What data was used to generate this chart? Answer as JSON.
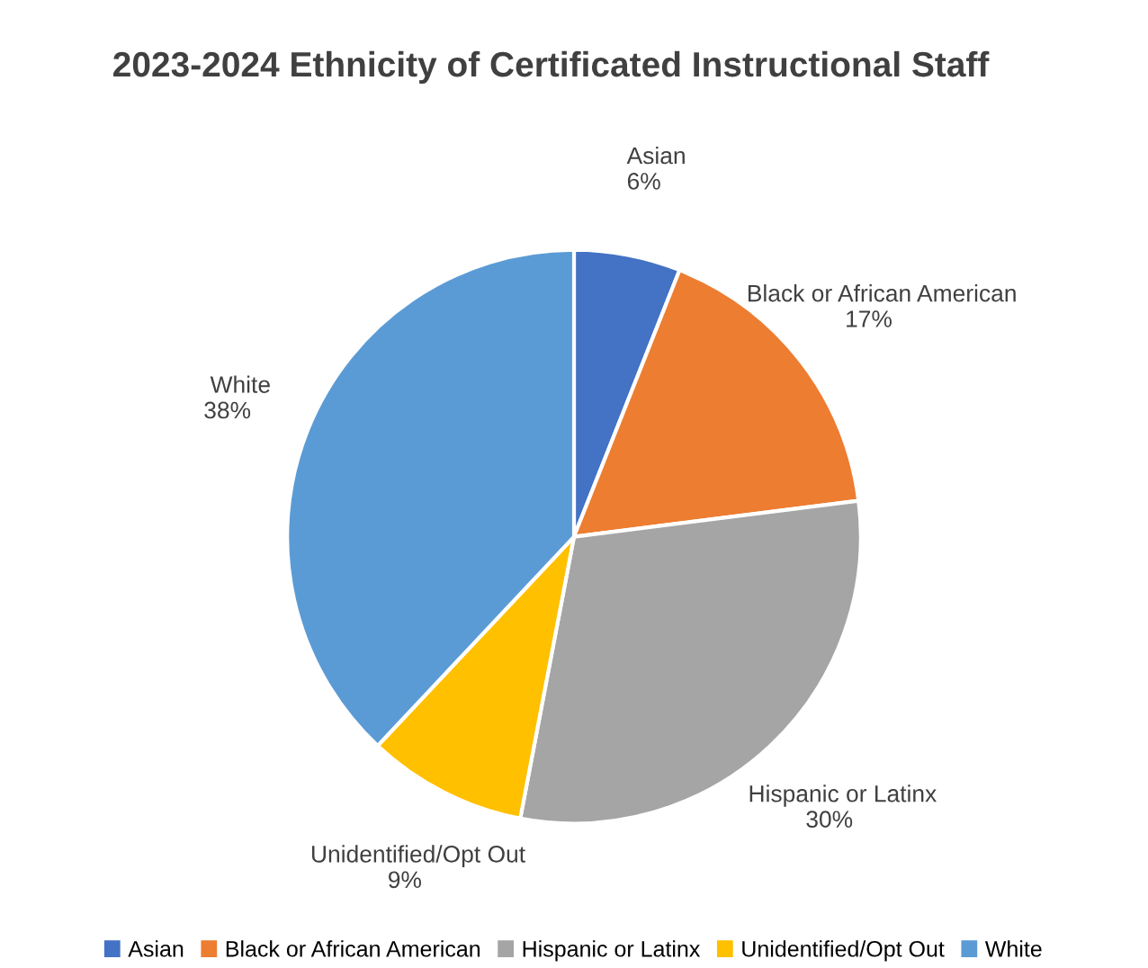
{
  "chart_data": {
    "type": "pie",
    "title": "2023-2024 Ethnicity of Certificated Instructional Staff",
    "categories": [
      "Asian",
      "Black or African American",
      "Hispanic or Latinx",
      "Unidentified/Opt Out",
      "White"
    ],
    "values": [
      6,
      17,
      30,
      9,
      38
    ],
    "value_labels": [
      "6%",
      "17%",
      "30%",
      "9%",
      "38%"
    ],
    "colors": [
      "#4472c4",
      "#ed7d31",
      "#a5a5a5",
      "#ffc000",
      "#5b9bd5"
    ],
    "legend": "bottom"
  }
}
